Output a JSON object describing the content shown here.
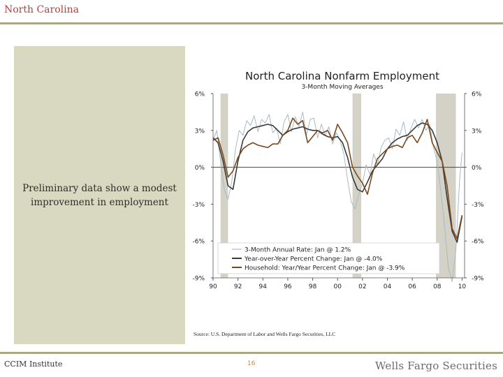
{
  "slide": {
    "title": "North Carolina",
    "panel_text": "Preliminary data show a modest improvement in employment",
    "source": "Source: U.S. Department of Labor and Wells Fargo Securities, LLC",
    "footer_left": "CCIM Institute",
    "page_number": "16",
    "brand": "Wells Fargo Securities"
  },
  "chart_data": {
    "type": "line",
    "title": "North Carolina Nonfarm Employment",
    "subtitle": "3-Month Moving Averages",
    "x_tick_labels": [
      "90",
      "92",
      "94",
      "96",
      "98",
      "00",
      "02",
      "04",
      "06",
      "08",
      "10"
    ],
    "x_tick_values": [
      1990,
      1992,
      1994,
      1996,
      1998,
      2000,
      2002,
      2004,
      2006,
      2008,
      2010
    ],
    "xlim": [
      1990,
      2010.2
    ],
    "y_tick_labels": [
      "6%",
      "3%",
      "0%",
      "-3%",
      "-6%",
      "-9%"
    ],
    "y_tick_values": [
      6,
      3,
      0,
      -3,
      -6,
      -9
    ],
    "ylim": [
      -9,
      6
    ],
    "recession_bands": [
      [
        1990.6,
        1991.2
      ],
      [
        2001.2,
        2001.9
      ],
      [
        2007.9,
        2009.5
      ]
    ],
    "legend_position": "bottom-right",
    "colors": {
      "annual_rate": "#a9b9c8",
      "yoy": "#3a3a3a",
      "household": "#7a4a1e",
      "recession": "#d4d1c6",
      "zero_line": "#444444"
    },
    "series": [
      {
        "name": "3-Month Annual Rate: Jan @ 1.2%",
        "x": [
          1990,
          1990.3,
          1990.6,
          1990.9,
          1991.2,
          1991.5,
          1991.8,
          1992.1,
          1992.4,
          1992.7,
          1993,
          1993.3,
          1993.6,
          1993.9,
          1994.2,
          1994.5,
          1994.8,
          1995.1,
          1995.4,
          1995.7,
          1996,
          1996.3,
          1996.6,
          1996.9,
          1997.2,
          1997.5,
          1997.8,
          1998.1,
          1998.4,
          1998.7,
          1999,
          1999.3,
          1999.6,
          1999.9,
          2000.2,
          2000.5,
          2000.8,
          2001.1,
          2001.4,
          2001.7,
          2002,
          2002.3,
          2002.6,
          2002.9,
          2003.2,
          2003.5,
          2003.8,
          2004.1,
          2004.4,
          2004.7,
          2005,
          2005.3,
          2005.6,
          2005.9,
          2006.2,
          2006.5,
          2006.8,
          2007.1,
          2007.4,
          2007.7,
          2008,
          2008.3,
          2008.6,
          2008.9,
          2009.2,
          2009.5,
          2009.8,
          2010
        ],
        "values": [
          2.2,
          3.0,
          0.5,
          -1.8,
          -2.6,
          -1.2,
          1.5,
          3.0,
          2.6,
          3.8,
          3.4,
          4.2,
          2.9,
          3.9,
          3.6,
          4.3,
          2.8,
          3.2,
          1.9,
          3.7,
          4.3,
          2.9,
          4.1,
          3.3,
          4.5,
          2.6,
          3.9,
          4.0,
          2.4,
          3.5,
          2.6,
          3.3,
          1.9,
          2.8,
          2.2,
          1.1,
          -1.0,
          -2.8,
          -3.4,
          -2.2,
          -1.3,
          0.2,
          -0.6,
          1.1,
          0.2,
          1.6,
          2.2,
          2.4,
          1.5,
          3.1,
          2.6,
          3.7,
          2.2,
          3.2,
          3.9,
          3.2,
          3.9,
          3.0,
          3.5,
          1.6,
          0.5,
          -2.0,
          -4.8,
          -8.2,
          -9.3,
          -6.8,
          -1.0,
          1.2
        ]
      },
      {
        "name": "Year-over-Year Percent Change: Jan @ -4.0%",
        "x": [
          1990,
          1990.4,
          1990.8,
          1991.2,
          1991.6,
          1992,
          1992.4,
          1992.8,
          1993.2,
          1993.6,
          1994,
          1994.4,
          1994.8,
          1995.2,
          1995.6,
          1996,
          1996.4,
          1996.8,
          1997.2,
          1997.6,
          1998,
          1998.4,
          1998.8,
          1999.2,
          1999.6,
          2000,
          2000.4,
          2000.8,
          2001.2,
          2001.6,
          2002,
          2002.4,
          2002.8,
          2003.2,
          2003.6,
          2004,
          2004.4,
          2004.8,
          2005.2,
          2005.6,
          2006,
          2006.4,
          2006.8,
          2007.2,
          2007.6,
          2008,
          2008.4,
          2008.8,
          2009.2,
          2009.6,
          2010
        ],
        "values": [
          2.4,
          2.0,
          0.5,
          -1.5,
          -1.8,
          0.5,
          2.2,
          2.9,
          3.2,
          3.3,
          3.4,
          3.5,
          3.4,
          3.0,
          2.6,
          2.9,
          3.1,
          3.2,
          3.3,
          3.1,
          3.0,
          3.0,
          2.7,
          2.5,
          2.4,
          2.5,
          2.0,
          0.8,
          -0.8,
          -1.8,
          -2.0,
          -1.2,
          -0.3,
          0.2,
          0.7,
          1.5,
          2.0,
          2.3,
          2.5,
          2.6,
          3.0,
          3.4,
          3.6,
          3.5,
          3.0,
          2.0,
          0.5,
          -2.5,
          -5.2,
          -6.1,
          -4.0
        ]
      },
      {
        "name": "Household: Year/Year Percent Change: Jan @ -3.9%",
        "x": [
          1990,
          1990.4,
          1990.8,
          1991.2,
          1991.6,
          1992,
          1992.4,
          1992.8,
          1993.2,
          1993.6,
          1994,
          1994.4,
          1994.8,
          1995.2,
          1995.6,
          1996,
          1996.4,
          1996.8,
          1997.2,
          1997.6,
          1998,
          1998.4,
          1998.8,
          1999.2,
          1999.6,
          2000,
          2000.4,
          2000.8,
          2001.2,
          2001.6,
          2002,
          2002.4,
          2002.8,
          2003.2,
          2003.6,
          2004,
          2004.4,
          2004.8,
          2005.2,
          2005.6,
          2006,
          2006.4,
          2006.8,
          2007.2,
          2007.6,
          2008,
          2008.4,
          2008.8,
          2009.2,
          2009.6,
          2010
        ],
        "values": [
          2.2,
          2.4,
          1.0,
          -0.8,
          -0.3,
          0.8,
          1.5,
          1.8,
          2.0,
          1.8,
          1.7,
          1.6,
          1.9,
          1.9,
          2.6,
          3.0,
          4.0,
          3.5,
          3.8,
          2.0,
          2.5,
          3.0,
          2.8,
          3.0,
          2.2,
          3.5,
          2.8,
          2.0,
          0.0,
          -0.7,
          -1.3,
          -2.2,
          -0.5,
          0.7,
          1.1,
          1.5,
          1.7,
          1.8,
          1.6,
          2.4,
          2.6,
          2.0,
          2.8,
          3.9,
          2.0,
          1.2,
          0.5,
          -1.5,
          -5.0,
          -5.8,
          -3.9
        ]
      }
    ]
  }
}
